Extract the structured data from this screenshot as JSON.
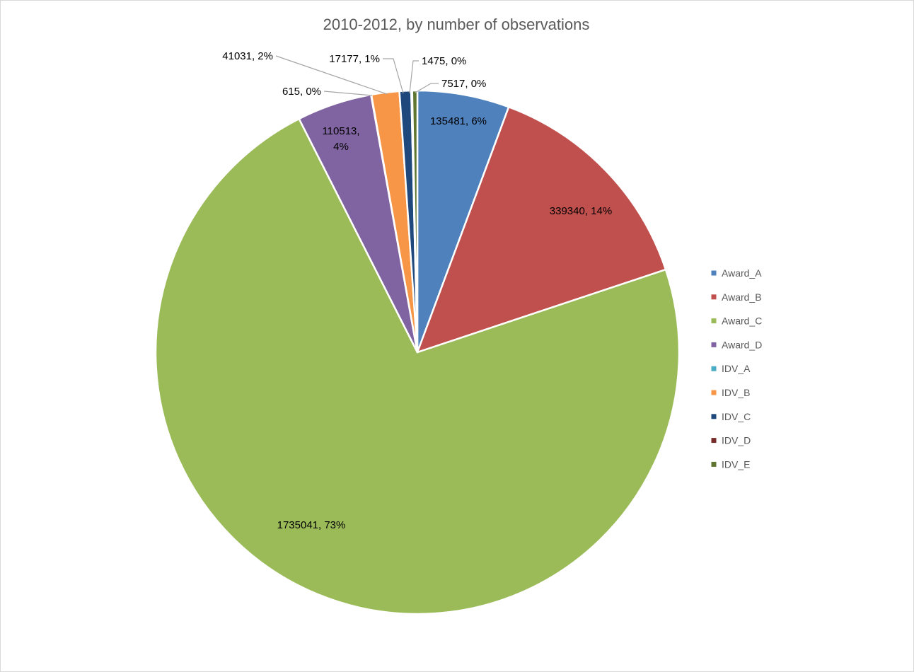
{
  "chart_data": {
    "type": "pie",
    "title": "2010-2012, by number of observations",
    "legend_position": "right",
    "slices": [
      {
        "name": "Award_A",
        "value": 135481,
        "percent_label": "6%",
        "color": "#4F81BD"
      },
      {
        "name": "Award_B",
        "value": 339340,
        "percent_label": "14%",
        "color": "#C0504D"
      },
      {
        "name": "Award_C",
        "value": 1735041,
        "percent_label": "73%",
        "color": "#9BBB59"
      },
      {
        "name": "Award_D",
        "value": 110513,
        "percent_label": "4%",
        "color": "#8064A2"
      },
      {
        "name": "IDV_A",
        "value": 615,
        "percent_label": "0%",
        "color": "#4BACC6"
      },
      {
        "name": "IDV_B",
        "value": 41031,
        "percent_label": "2%",
        "color": "#F79646"
      },
      {
        "name": "IDV_C",
        "value": 17177,
        "percent_label": "1%",
        "color": "#1F497D"
      },
      {
        "name": "IDV_D",
        "value": 1475,
        "percent_label": "0%",
        "color": "#772C2A"
      },
      {
        "name": "IDV_E",
        "value": 7517,
        "percent_label": "0%",
        "color": "#5F7530"
      }
    ]
  }
}
